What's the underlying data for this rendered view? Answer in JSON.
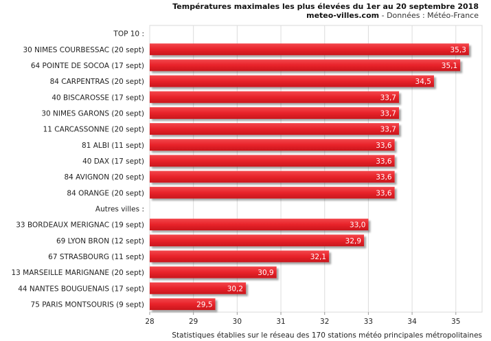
{
  "chart_data": {
    "type": "bar",
    "orientation": "horizontal",
    "title": "Températures maximales les plus élevées du 1er au 20 septembre 2018",
    "subtitle_site": "meteo-villes.com",
    "subtitle_source": " - Données : Météo-France",
    "footnote": "Statistiques établies sur le réseau des 170 stations météo principales métropolitaines",
    "xlim": [
      28,
      35.6
    ],
    "xticks": [
      28,
      29,
      30,
      31,
      32,
      33,
      34,
      35
    ],
    "grid": true,
    "bar_color": "#e8232a",
    "rows": [
      {
        "label": "TOP 10 :",
        "header": true
      },
      {
        "label": "30 NIMES COURBESSAC (20 sept)",
        "value": 35.3,
        "value_label": "35,3"
      },
      {
        "label": "64 POINTE DE SOCOA (17 sept)",
        "value": 35.1,
        "value_label": "35,1"
      },
      {
        "label": "84 CARPENTRAS (20 sept)",
        "value": 34.5,
        "value_label": "34,5"
      },
      {
        "label": "40 BISCAROSSE (17 sept)",
        "value": 33.7,
        "value_label": "33,7"
      },
      {
        "label": "30 NIMES GARONS (20 sept)",
        "value": 33.7,
        "value_label": "33,7"
      },
      {
        "label": "11 CARCASSONNE (20 sept)",
        "value": 33.7,
        "value_label": "33,7"
      },
      {
        "label": "81 ALBI (11 sept)",
        "value": 33.6,
        "value_label": "33,6"
      },
      {
        "label": "40 DAX (17 sept)",
        "value": 33.6,
        "value_label": "33,6"
      },
      {
        "label": "84 AVIGNON (20 sept)",
        "value": 33.6,
        "value_label": "33,6"
      },
      {
        "label": "84 ORANGE (20 sept)",
        "value": 33.6,
        "value_label": "33,6"
      },
      {
        "label": "Autres villes :",
        "header": true
      },
      {
        "label": "33 BORDEAUX MERIGNAC (19 sept)",
        "value": 33.0,
        "value_label": "33,0"
      },
      {
        "label": "69 LYON BRON (12 sept)",
        "value": 32.9,
        "value_label": "32,9"
      },
      {
        "label": "67 STRASBOURG (11 sept)",
        "value": 32.1,
        "value_label": "32,1"
      },
      {
        "label": "13 MARSEILLE MARIGNANE (20 sept)",
        "value": 30.9,
        "value_label": "30,9"
      },
      {
        "label": "44 NANTES BOUGUENAIS (17 sept)",
        "value": 30.2,
        "value_label": "30,2"
      },
      {
        "label": "75 PARIS MONTSOURIS (9 sept)",
        "value": 29.5,
        "value_label": "29,5"
      }
    ]
  }
}
